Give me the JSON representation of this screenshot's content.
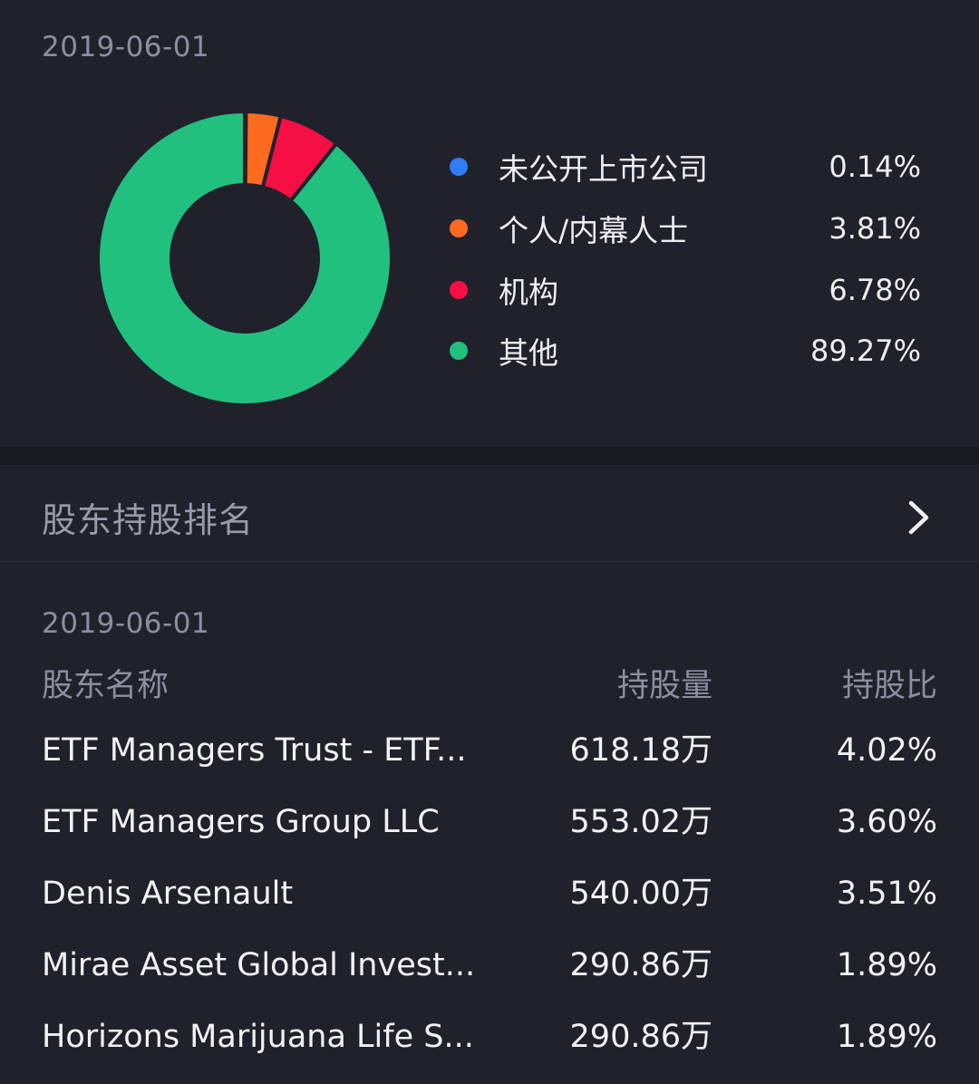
{
  "distribution": {
    "date": "2019-06-01",
    "items": [
      {
        "label": "未公开上市公司",
        "percent": "0.14%",
        "value": 0.14,
        "color": "#2f7cf6"
      },
      {
        "label": "个人/内幕人士",
        "percent": "3.81%",
        "value": 3.81,
        "color": "#ff6a21"
      },
      {
        "label": "机构",
        "percent": "6.78%",
        "value": 6.78,
        "color": "#f50f45"
      },
      {
        "label": "其他",
        "percent": "89.27%",
        "value": 89.27,
        "color": "#22c07f"
      }
    ]
  },
  "ranking": {
    "title": "股东持股排名",
    "chevron_icon": "chevron-right-icon",
    "date": "2019-06-01",
    "columns": {
      "name": "股东名称",
      "shares": "持股量",
      "ratio": "持股比"
    },
    "rows": [
      {
        "name": "ETF Managers Trust - ETF...",
        "shares": "618.18万",
        "ratio": "4.02%"
      },
      {
        "name": "ETF Managers Group LLC",
        "shares": "553.02万",
        "ratio": "3.60%"
      },
      {
        "name": "Denis Arsenault",
        "shares": "540.00万",
        "ratio": "3.51%"
      },
      {
        "name": "Mirae Asset Global Invest...",
        "shares": "290.86万",
        "ratio": "1.89%"
      },
      {
        "name": "Horizons Marijuana Life S...",
        "shares": "290.86万",
        "ratio": "1.89%"
      }
    ]
  }
}
